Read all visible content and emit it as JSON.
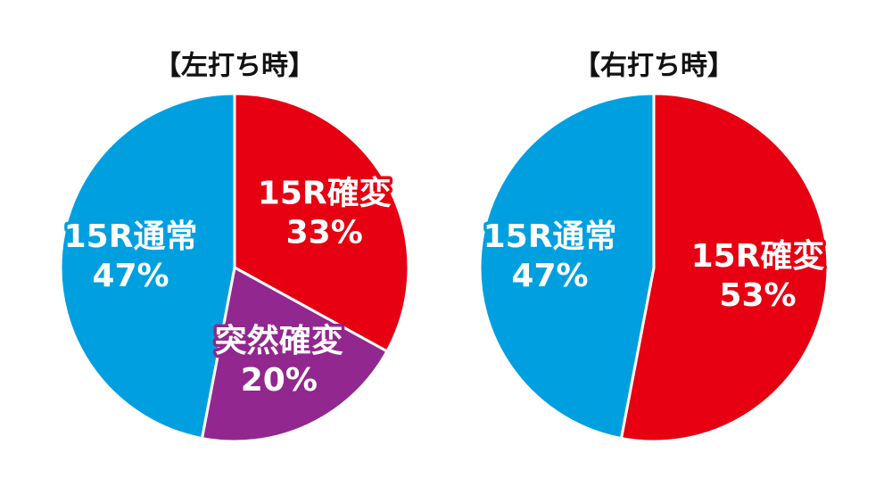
{
  "chart_data": [
    {
      "type": "pie",
      "title": "【左打ち時】",
      "categories": [
        "15R確変",
        "突然確変",
        "15R通常"
      ],
      "values": [
        33,
        20,
        47
      ],
      "value_labels": [
        "33%",
        "20%",
        "47%"
      ],
      "colors": [
        "#e60012",
        "#92278f",
        "#00a0e0"
      ]
    },
    {
      "type": "pie",
      "title": "【右打ち時】",
      "categories": [
        "15R確変",
        "15R通常"
      ],
      "values": [
        53,
        47
      ],
      "value_labels": [
        "53%",
        "47%"
      ],
      "colors": [
        "#e60012",
        "#00a0e0"
      ]
    }
  ]
}
